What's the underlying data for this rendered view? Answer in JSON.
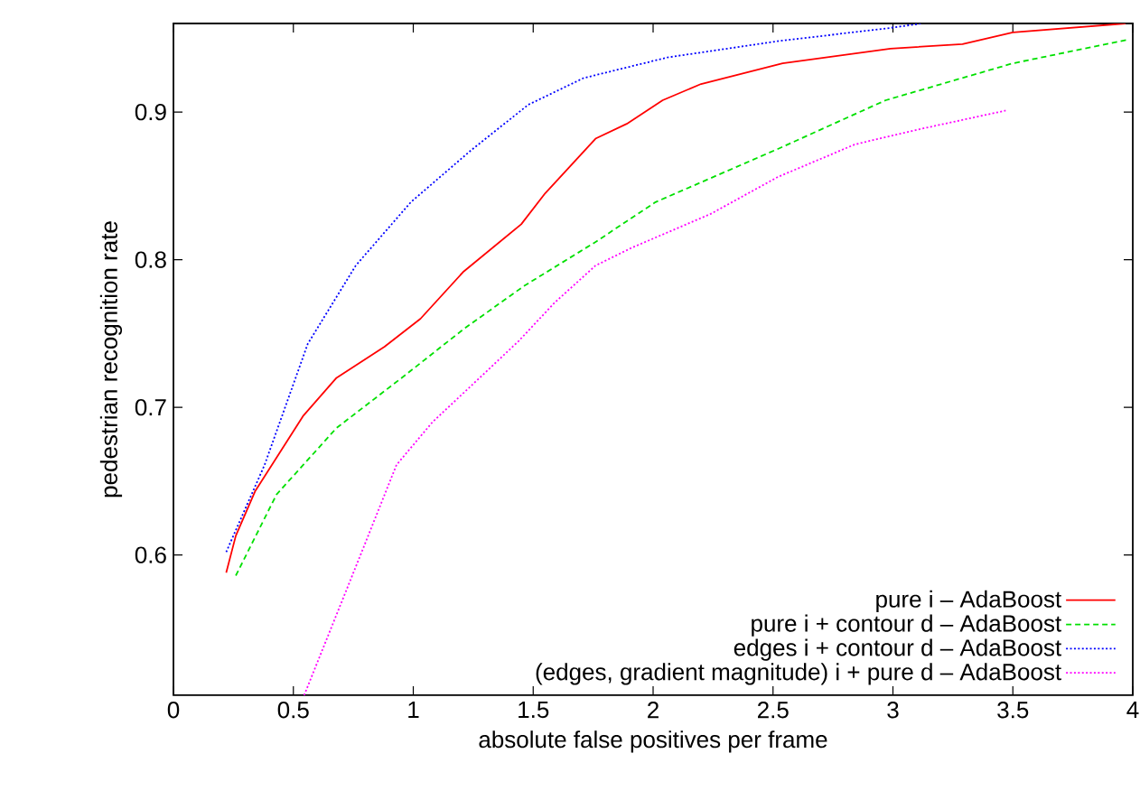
{
  "chart_data": {
    "type": "line",
    "xlabel": "absolute false positives per frame",
    "ylabel": "pedestrian recognition rate",
    "xlim": [
      0,
      4
    ],
    "ylim": [
      0.505,
      0.96
    ],
    "xticks": [
      0,
      0.5,
      1,
      1.5,
      2,
      2.5,
      3,
      3.5,
      4
    ],
    "yticks": [
      0.6,
      0.7,
      0.8,
      0.9
    ],
    "legend": "bottom right",
    "grid": false,
    "marker": "none",
    "series": [
      {
        "name": "pure i – AdaBoost",
        "color": "#ff0000",
        "line_style": "solid",
        "x": [
          0.22,
          0.26,
          0.34,
          0.54,
          0.68,
          0.88,
          1.03,
          1.21,
          1.45,
          1.55,
          1.76,
          1.89,
          2.04,
          2.2,
          2.54,
          2.99,
          3.29,
          3.5,
          3.97
        ],
        "values": [
          0.588,
          0.613,
          0.643,
          0.694,
          0.72,
          0.741,
          0.76,
          0.792,
          0.824,
          0.845,
          0.882,
          0.892,
          0.908,
          0.919,
          0.933,
          0.943,
          0.946,
          0.954,
          0.96
        ]
      },
      {
        "name": "pure i + contour d – AdaBoost",
        "color": "#00e000",
        "line_style": "dashed",
        "x": [
          0.26,
          0.43,
          0.68,
          0.96,
          1.21,
          1.46,
          1.76,
          2.01,
          2.52,
          2.97,
          3.5,
          3.98
        ],
        "values": [
          0.586,
          0.641,
          0.686,
          0.721,
          0.753,
          0.782,
          0.812,
          0.839,
          0.875,
          0.908,
          0.933,
          0.949
        ]
      },
      {
        "name": "edges i + contour d – AdaBoost",
        "color": "#0000ff",
        "line_style": "dotted",
        "x": [
          0.22,
          0.38,
          0.56,
          0.76,
          0.99,
          1.24,
          1.48,
          1.71,
          2.06,
          2.52,
          2.99,
          3.12
        ],
        "values": [
          0.602,
          0.661,
          0.743,
          0.796,
          0.839,
          0.874,
          0.905,
          0.923,
          0.937,
          0.948,
          0.957,
          0.96
        ]
      },
      {
        "name": "(edges, gradient magnitude) i + pure d – AdaBoost",
        "color": "#ff00ff",
        "line_style": "dotted",
        "x": [
          0.545,
          0.78,
          0.93,
          1.08,
          1.29,
          1.44,
          1.59,
          1.76,
          1.91,
          2.24,
          2.52,
          2.84,
          3.1,
          3.47
        ],
        "values": [
          0.505,
          0.6,
          0.661,
          0.69,
          0.722,
          0.745,
          0.771,
          0.796,
          0.808,
          0.831,
          0.856,
          0.878,
          0.888,
          0.901
        ]
      }
    ]
  }
}
